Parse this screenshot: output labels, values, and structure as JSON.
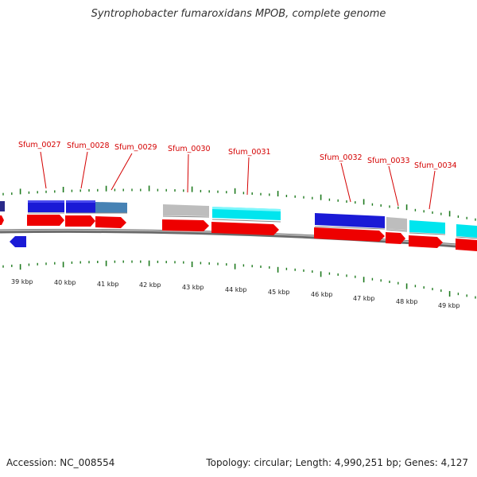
{
  "title": "Syntrophobacter fumaroxidans MPOB, complete genome",
  "accession_text": "Accession: NC_008554",
  "topology_text": "Topology: circular; Length: 4,990,251 bp; Genes: 4,127",
  "colors": {
    "cds_red": "#ee0000",
    "blue": "#1a1ad6",
    "steel_blue": "#4682b4",
    "gray": "#bdbdbd",
    "cyan": "#00e5ee",
    "tick_green": "#1e7a1e",
    "backbone": "#808080",
    "label_red": "#d40000"
  },
  "kbp_labels": [
    "39 kbp",
    "40 kbp",
    "41 kbp",
    "42 kbp",
    "43 kbp",
    "44 kbp",
    "45 kbp",
    "46 kbp",
    "47 kbp",
    "48 kbp",
    "49 kbp"
  ],
  "genes": [
    {
      "name": "Sfum_0027",
      "category": "blue"
    },
    {
      "name": "Sfum_0028",
      "category": "blue"
    },
    {
      "name": "Sfum_0029",
      "category": "steel_blue"
    },
    {
      "name": "Sfum_0030",
      "category": "gray"
    },
    {
      "name": "Sfum_0031",
      "category": "cyan"
    },
    {
      "name": "Sfum_0032",
      "category": "blue"
    },
    {
      "name": "Sfum_0033",
      "category": "gray"
    },
    {
      "name": "Sfum_0034",
      "category": "cyan"
    }
  ]
}
